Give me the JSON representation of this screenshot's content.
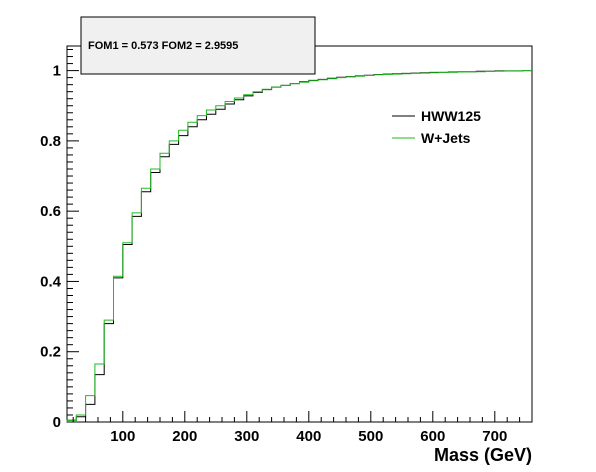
{
  "chart_data": {
    "type": "line",
    "subtype": "cumulative-step-histogram",
    "xlabel": "Mass (GeV)",
    "ylabel": "",
    "xlim": [
      10,
      760
    ],
    "ylim": [
      0,
      1.07
    ],
    "x_ticks": [
      100,
      200,
      300,
      400,
      500,
      600,
      700
    ],
    "y_ticks": [
      0,
      0.2,
      0.4,
      0.6,
      0.8,
      1
    ],
    "y_tick_labels": [
      "0",
      "0.2",
      "0.4",
      "0.6",
      "0.8",
      "1"
    ],
    "grid": false,
    "legend_position": "top-right",
    "annotation": "FOM1 = 0.573 FOM2 = 2.9595",
    "bin_edges": [
      10,
      25,
      40,
      55,
      70,
      85,
      100,
      115,
      130,
      145,
      160,
      175,
      190,
      205,
      220,
      235,
      250,
      265,
      280,
      295,
      310,
      325,
      340,
      355,
      370,
      385,
      400,
      415,
      430,
      445,
      460,
      475,
      490,
      505,
      520,
      535,
      550,
      565,
      580,
      595,
      610,
      625,
      640,
      655,
      670,
      685,
      700,
      715,
      730,
      745,
      760
    ],
    "series": [
      {
        "name": "HWW125",
        "color": "#000000",
        "values": [
          0.005,
          0.015,
          0.05,
          0.135,
          0.28,
          0.41,
          0.505,
          0.585,
          0.655,
          0.71,
          0.755,
          0.79,
          0.815,
          0.84,
          0.86,
          0.876,
          0.89,
          0.905,
          0.917,
          0.928,
          0.938,
          0.946,
          0.953,
          0.958,
          0.963,
          0.968,
          0.972,
          0.975,
          0.978,
          0.981,
          0.983,
          0.985,
          0.987,
          0.989,
          0.99,
          0.991,
          0.992,
          0.993,
          0.994,
          0.995,
          0.995,
          0.996,
          0.997,
          0.997,
          0.998,
          0.998,
          0.999,
          0.999,
          0.999,
          1.0
        ]
      },
      {
        "name": "W+Jets",
        "color": "#22bb22",
        "values": [
          0.005,
          0.02,
          0.075,
          0.165,
          0.29,
          0.415,
          0.51,
          0.595,
          0.665,
          0.72,
          0.765,
          0.8,
          0.83,
          0.853,
          0.872,
          0.888,
          0.9,
          0.912,
          0.922,
          0.931,
          0.94,
          0.947,
          0.953,
          0.958,
          0.963,
          0.967,
          0.971,
          0.974,
          0.977,
          0.98,
          0.982,
          0.984,
          0.986,
          0.988,
          0.989,
          0.99,
          0.991,
          0.992,
          0.993,
          0.994,
          0.995,
          0.995,
          0.996,
          0.997,
          0.997,
          0.998,
          0.998,
          0.999,
          0.999,
          1.0
        ]
      }
    ]
  }
}
